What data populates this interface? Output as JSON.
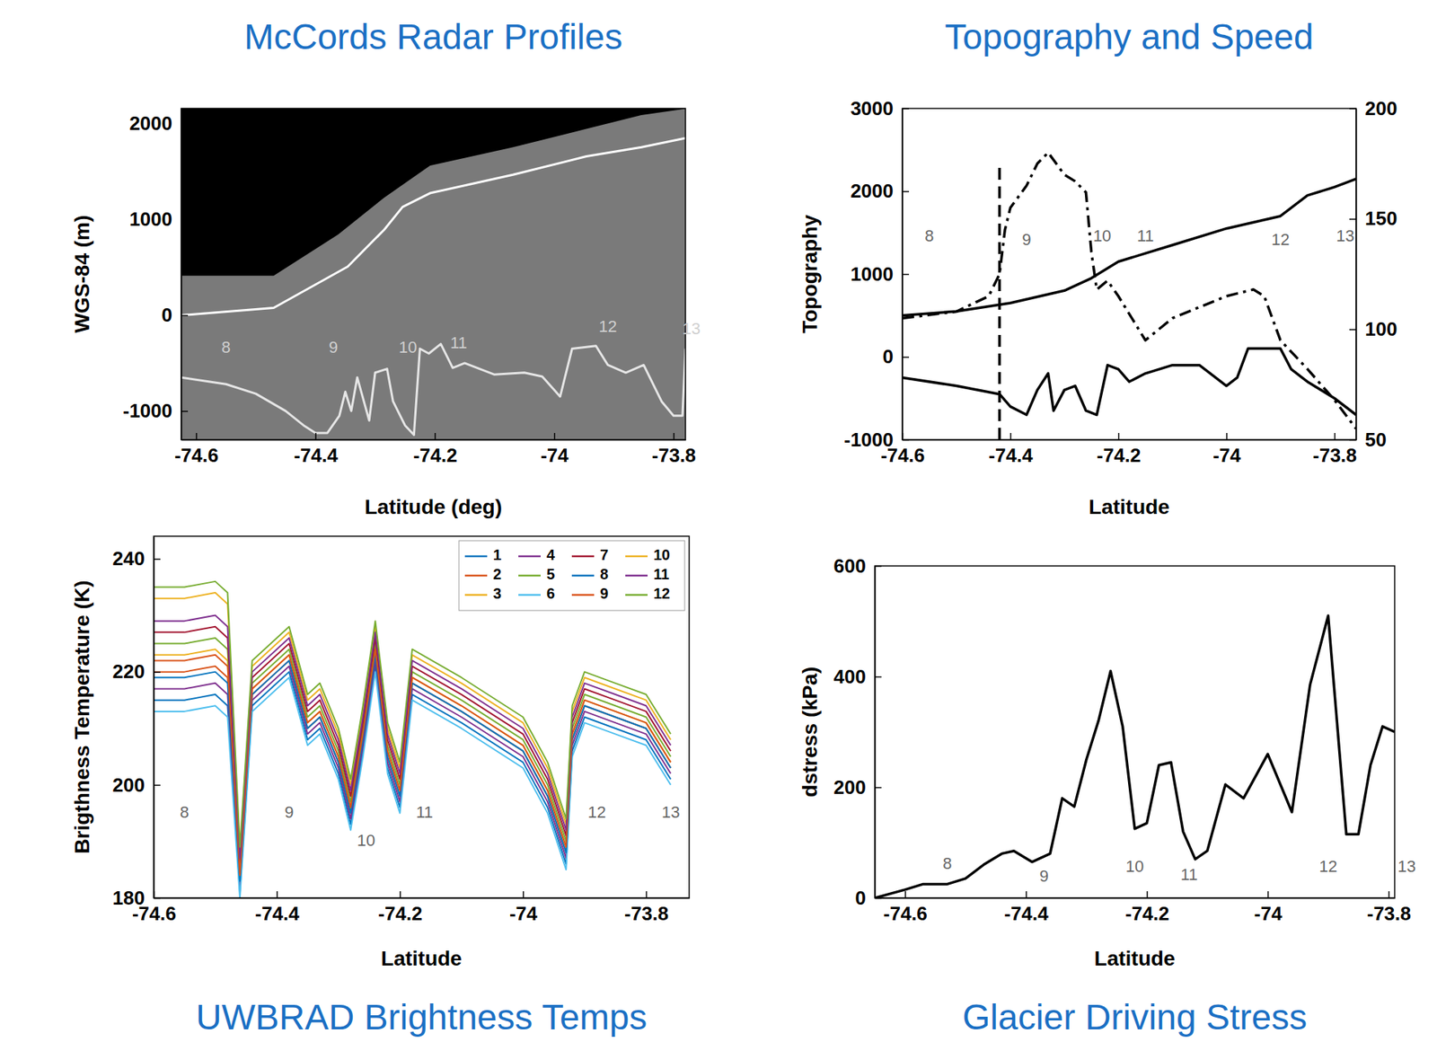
{
  "chart_data": [
    {
      "type": "line",
      "title": "McCords Radar Profiles",
      "x_label": "Latitude (deg)",
      "y_label": "WGS-84 (m)",
      "xlim": [
        -74.625,
        -73.78
      ],
      "ylim": [
        -1300,
        2160
      ],
      "xticks": [
        -74.6,
        -74.4,
        -74.2,
        -74,
        -73.8
      ],
      "yticks": [
        -1000,
        0,
        1000,
        2000
      ],
      "series": [
        {
          "type": "area",
          "color": "#000000",
          "x": [
            -74.625,
            -74.47,
            -74.362,
            -74.285,
            -74.208,
            -74.069,
            -73.946,
            -73.854,
            -73.78
          ],
          "values": [
            412,
            412,
            844,
            1227,
            1563,
            1755,
            1946,
            2090,
            2157
          ]
        },
        {
          "type": "line",
          "color": "#ffffff",
          "x": [
            -74.625,
            -74.47,
            -74.346,
            -74.285,
            -74.254,
            -74.208,
            -74.069,
            -73.946,
            -73.854,
            -73.78
          ],
          "values": [
            0,
            77,
            508,
            892,
            1131,
            1275,
            1467,
            1659,
            1755,
            1850
          ]
        },
        {
          "type": "line",
          "color": "#e6e6e6",
          "x": [
            -74.625,
            -74.55,
            -74.5,
            -74.45,
            -74.42,
            -74.4,
            -74.38,
            -74.36,
            -74.35,
            -74.34,
            -74.33,
            -74.31,
            -74.3,
            -74.28,
            -74.27,
            -74.25,
            -74.235,
            -74.225,
            -74.21,
            -74.19,
            -74.17,
            -74.15,
            -74.1,
            -74.05,
            -74.02,
            -73.99,
            -73.97,
            -73.93,
            -73.91,
            -73.88,
            -73.85,
            -73.82,
            -73.8,
            -73.785,
            -73.78
          ],
          "values": [
            -650,
            -720,
            -820,
            -1000,
            -1150,
            -1230,
            -1230,
            -1050,
            -800,
            -1000,
            -650,
            -1100,
            -600,
            -560,
            -900,
            -1150,
            -1250,
            -350,
            -400,
            -300,
            -550,
            -500,
            -620,
            -600,
            -640,
            -850,
            -350,
            -320,
            -520,
            -600,
            -520,
            -900,
            -1050,
            -1050,
            -350
          ]
        }
      ],
      "annotations": [
        {
          "text": "8",
          "x": -74.55,
          "y": -350,
          "color": "#d0d0d0"
        },
        {
          "text": "9",
          "x": -74.37,
          "y": -350,
          "color": "#d0d0d0"
        },
        {
          "text": "10",
          "x": -74.245,
          "y": -350,
          "color": "#d0d0d0"
        },
        {
          "text": "11",
          "x": -74.16,
          "y": -300,
          "color": "#d0d0d0"
        },
        {
          "text": "12",
          "x": -73.91,
          "y": -130,
          "color": "#d0d0d0"
        },
        {
          "text": "13",
          "x": -73.77,
          "y": -150,
          "color": "#d0d0d0"
        }
      ]
    },
    {
      "type": "line",
      "title": "Topography and Speed",
      "x_label": "Latitude",
      "y_label": "Topography",
      "xlim": [
        -74.6,
        -73.76
      ],
      "ylim": [
        -1000,
        3000
      ],
      "y2lim": [
        50,
        200
      ],
      "xticks": [
        -74.6,
        -74.4,
        -74.2,
        -74,
        -73.8
      ],
      "yticks": [
        -1000,
        0,
        1000,
        2000,
        3000
      ],
      "y2ticks": [
        50,
        100,
        150,
        200
      ],
      "series": [
        {
          "type": "line",
          "color": "#000000",
          "line_style": "solid",
          "x": [
            -74.6,
            -74.5,
            -74.4,
            -74.3,
            -74.25,
            -74.2,
            -74.15,
            -74.1,
            -74.0,
            -73.9,
            -73.85,
            -73.8,
            -73.76
          ],
          "values": [
            500,
            550,
            650,
            800,
            950,
            1150,
            1250,
            1350,
            1550,
            1700,
            1950,
            2050,
            2150
          ]
        },
        {
          "type": "line",
          "color": "#000000",
          "line_style": "solid",
          "x": [
            -74.6,
            -74.5,
            -74.42,
            -74.4,
            -74.37,
            -74.35,
            -74.33,
            -74.32,
            -74.3,
            -74.28,
            -74.26,
            -74.24,
            -74.22,
            -74.2,
            -74.18,
            -74.15,
            -74.1,
            -74.05,
            -74.0,
            -73.98,
            -73.96,
            -73.9,
            -73.88,
            -73.85,
            -73.8,
            -73.76
          ],
          "values": [
            -250,
            -350,
            -450,
            -600,
            -700,
            -400,
            -200,
            -650,
            -400,
            -350,
            -650,
            -700,
            -100,
            -150,
            -300,
            -200,
            -100,
            -100,
            -350,
            -250,
            100,
            100,
            -150,
            -300,
            -500,
            -700
          ]
        },
        {
          "type": "line",
          "color": "#000000",
          "line_style": "dashdot",
          "axis": "y2",
          "x": [
            -74.6,
            -74.5,
            -74.44,
            -74.42,
            -74.41,
            -74.4,
            -74.37,
            -74.35,
            -74.33,
            -74.3,
            -74.28,
            -74.26,
            -74.25,
            -74.24,
            -74.22,
            -74.2,
            -74.15,
            -74.1,
            -74.0,
            -73.95,
            -73.93,
            -73.9,
            -73.85,
            -73.8,
            -73.76
          ],
          "values": [
            105,
            108,
            115,
            125,
            145,
            155,
            165,
            175,
            180,
            170,
            167,
            162,
            135,
            118,
            122,
            115,
            95,
            105,
            115,
            118,
            115,
            95,
            82,
            68,
            55
          ]
        },
        {
          "type": "line",
          "color": "#000000",
          "line_style": "dashed",
          "x": [
            -74.42,
            -74.42
          ],
          "values": [
            -1000,
            2300
          ]
        }
      ],
      "annotations": [
        {
          "text": "8",
          "x": -74.55,
          "y": 1450,
          "color": "#666666"
        },
        {
          "text": "9",
          "x": -74.37,
          "y": 1400,
          "color": "#666666"
        },
        {
          "text": "10",
          "x": -74.23,
          "y": 1450,
          "color": "#666666"
        },
        {
          "text": "11",
          "x": -74.15,
          "y": 1450,
          "color": "#666666"
        },
        {
          "text": "12",
          "x": -73.9,
          "y": 1400,
          "color": "#666666"
        },
        {
          "text": "13",
          "x": -73.78,
          "y": 1450,
          "color": "#666666"
        }
      ]
    },
    {
      "type": "line",
      "title": "UWBRAD Brightness Temps",
      "x_label": "Latitude",
      "y_label": "Brigthness Temperature (K)",
      "xlim": [
        -74.6,
        -73.73
      ],
      "ylim": [
        180,
        244
      ],
      "xticks": [
        -74.6,
        -74.4,
        -74.2,
        -74,
        -73.8
      ],
      "yticks": [
        180,
        200,
        220,
        240
      ],
      "legend": "upper right",
      "x": [
        -74.6,
        -74.55,
        -74.5,
        -74.48,
        -74.46,
        -74.44,
        -74.4,
        -74.38,
        -74.35,
        -74.33,
        -74.3,
        -74.28,
        -74.26,
        -74.24,
        -74.22,
        -74.2,
        -74.18,
        -74.1,
        -74.0,
        -73.96,
        -73.93,
        -73.92,
        -73.9,
        -73.85,
        -73.8,
        -73.76
      ],
      "series": [
        {
          "name": "1",
          "color": "#0072bd",
          "values": [
            215,
            215,
            216,
            214,
            181,
            214,
            218,
            220,
            208,
            210,
            202,
            193,
            206,
            221,
            203,
            196,
            216,
            211,
            204,
            196,
            186,
            206,
            212,
            210,
            208,
            201
          ]
        },
        {
          "name": "2",
          "color": "#d95319",
          "values": [
            220,
            220,
            221,
            219,
            183,
            216,
            220,
            222,
            210,
            212,
            204,
            195,
            208,
            223,
            205,
            198,
            218,
            213,
            206,
            198,
            188,
            208,
            214,
            212,
            210,
            203
          ]
        },
        {
          "name": "3",
          "color": "#edb120",
          "values": [
            223,
            223,
            224,
            222,
            184,
            217,
            221,
            223,
            211,
            213,
            205,
            196,
            209,
            224,
            206,
            199,
            219,
            214,
            207,
            199,
            189,
            209,
            215,
            213,
            211,
            204
          ]
        },
        {
          "name": "4",
          "color": "#7e2f8e",
          "values": [
            217,
            217,
            218,
            216,
            182,
            215,
            219,
            221,
            209,
            211,
            203,
            194,
            207,
            222,
            204,
            197,
            217,
            212,
            205,
            197,
            187,
            207,
            213,
            211,
            209,
            202
          ]
        },
        {
          "name": "5",
          "color": "#77ac30",
          "values": [
            225,
            225,
            226,
            224,
            185,
            218,
            222,
            224,
            212,
            214,
            206,
            197,
            210,
            225,
            207,
            200,
            220,
            215,
            208,
            200,
            190,
            210,
            216,
            214,
            212,
            205
          ]
        },
        {
          "name": "6",
          "color": "#4dbeee",
          "values": [
            213,
            213,
            214,
            212,
            180,
            213,
            217,
            219,
            207,
            209,
            201,
            192,
            205,
            220,
            202,
            195,
            215,
            210,
            203,
            195,
            185,
            205,
            211,
            209,
            207,
            200
          ]
        },
        {
          "name": "7",
          "color": "#a2142f",
          "values": [
            227,
            227,
            228,
            226,
            186,
            219,
            223,
            225,
            213,
            215,
            207,
            198,
            211,
            226,
            208,
            201,
            221,
            216,
            209,
            201,
            191,
            211,
            217,
            215,
            213,
            206
          ]
        },
        {
          "name": "8",
          "color": "#0072bd",
          "values": [
            219,
            219,
            220,
            218,
            183,
            216,
            220,
            222,
            210,
            212,
            204,
            195,
            208,
            223,
            205,
            198,
            218,
            213,
            206,
            198,
            188,
            208,
            214,
            212,
            210,
            203
          ]
        },
        {
          "name": "9",
          "color": "#d95319",
          "values": [
            222,
            222,
            223,
            221,
            184,
            217,
            221,
            223,
            211,
            213,
            205,
            196,
            209,
            224,
            206,
            199,
            219,
            214,
            207,
            199,
            189,
            209,
            215,
            213,
            211,
            204
          ]
        },
        {
          "name": "10",
          "color": "#edb120",
          "values": [
            233,
            233,
            234,
            232,
            188,
            221,
            225,
            227,
            215,
            217,
            209,
            200,
            213,
            228,
            210,
            203,
            223,
            218,
            211,
            203,
            193,
            213,
            219,
            217,
            215,
            208
          ]
        },
        {
          "name": "11",
          "color": "#7e2f8e",
          "values": [
            229,
            229,
            230,
            228,
            187,
            220,
            224,
            226,
            214,
            216,
            208,
            199,
            212,
            227,
            209,
            202,
            222,
            217,
            210,
            202,
            192,
            212,
            218,
            216,
            214,
            207
          ]
        },
        {
          "name": "12",
          "color": "#77ac30",
          "values": [
            235,
            235,
            236,
            234,
            189,
            222,
            226,
            228,
            216,
            218,
            210,
            201,
            214,
            229,
            211,
            204,
            224,
            219,
            212,
            204,
            194,
            214,
            220,
            218,
            216,
            209
          ]
        }
      ],
      "annotations": [
        {
          "text": "8",
          "x": -74.55,
          "y": 195,
          "color": "#666666"
        },
        {
          "text": "9",
          "x": -74.38,
          "y": 195,
          "color": "#666666"
        },
        {
          "text": "10",
          "x": -74.255,
          "y": 190,
          "color": "#666666"
        },
        {
          "text": "11",
          "x": -74.16,
          "y": 195,
          "color": "#666666"
        },
        {
          "text": "12",
          "x": -73.88,
          "y": 195,
          "color": "#666666"
        },
        {
          "text": "13",
          "x": -73.76,
          "y": 195,
          "color": "#666666"
        }
      ]
    },
    {
      "type": "line",
      "title": "Glacier Driving Stress",
      "x_label": "Latitude",
      "y_label": "dstress (kPa)",
      "xlim": [
        -74.65,
        -73.79
      ],
      "ylim": [
        0,
        600
      ],
      "xticks": [
        -74.6,
        -74.4,
        -74.2,
        -74,
        -73.8
      ],
      "yticks": [
        0,
        200,
        400,
        600
      ],
      "series": [
        {
          "type": "line",
          "color": "#000000",
          "x": [
            -74.65,
            -74.6,
            -74.57,
            -74.53,
            -74.5,
            -74.47,
            -74.44,
            -74.42,
            -74.39,
            -74.36,
            -74.34,
            -74.32,
            -74.3,
            -74.28,
            -74.26,
            -74.24,
            -74.22,
            -74.2,
            -74.18,
            -74.16,
            -74.14,
            -74.12,
            -74.1,
            -74.07,
            -74.04,
            -74.0,
            -73.96,
            -73.93,
            -73.9,
            -73.87,
            -73.85,
            -73.83,
            -73.81,
            -73.79
          ],
          "values": [
            0,
            15,
            25,
            25,
            35,
            60,
            80,
            85,
            65,
            80,
            180,
            165,
            250,
            320,
            410,
            310,
            125,
            135,
            240,
            245,
            120,
            70,
            85,
            205,
            180,
            260,
            155,
            385,
            510,
            115,
            115,
            240,
            310,
            300
          ]
        }
      ],
      "annotations": [
        {
          "text": "8",
          "x": -74.53,
          "y": 60,
          "color": "#666666"
        },
        {
          "text": "9",
          "x": -74.37,
          "y": 38,
          "color": "#666666"
        },
        {
          "text": "10",
          "x": -74.22,
          "y": 55,
          "color": "#666666"
        },
        {
          "text": "11",
          "x": -74.13,
          "y": 40,
          "color": "#666666"
        },
        {
          "text": "12",
          "x": -73.9,
          "y": 55,
          "color": "#666666"
        },
        {
          "text": "13",
          "x": -73.77,
          "y": 55,
          "color": "#666666"
        }
      ]
    }
  ]
}
